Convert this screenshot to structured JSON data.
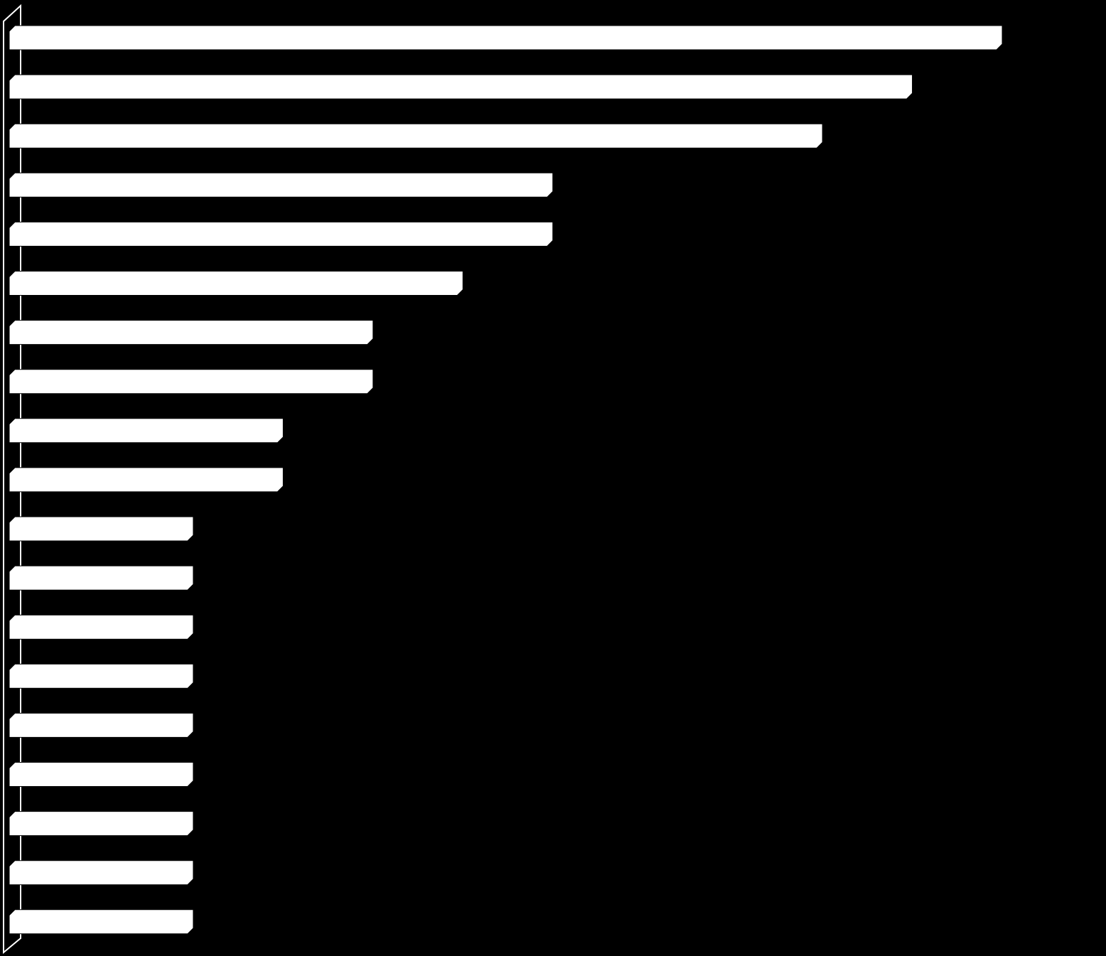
{
  "chart_data": {
    "type": "bar",
    "orientation": "horizontal",
    "categories": [
      null,
      null,
      null,
      null,
      null,
      null,
      null,
      null,
      null,
      null,
      null,
      null,
      null,
      null,
      null,
      null,
      null,
      null,
      null
    ],
    "values": [
      11,
      10,
      9,
      6,
      6,
      5,
      4,
      4,
      3,
      3,
      2,
      2,
      2,
      2,
      2,
      2,
      2,
      2,
      2
    ],
    "color": "#ffffff",
    "xlim": [
      0,
      11
    ]
  }
}
